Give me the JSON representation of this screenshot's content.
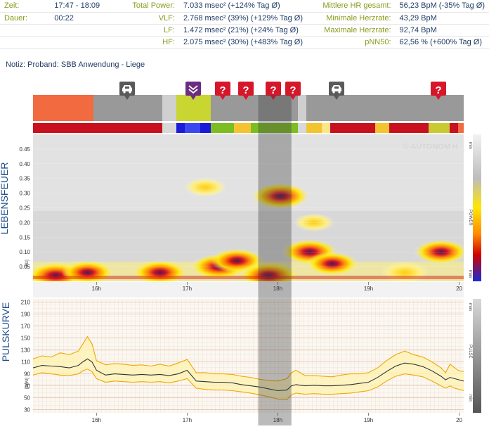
{
  "summary": {
    "zeit": {
      "label": "Zeit:",
      "value": "17:47 - 18:09"
    },
    "dauer": {
      "label": "Dauer:",
      "value": "00:22"
    },
    "total_power": {
      "label": "Total Power:",
      "value": "7.033 msec² (+124% Tag Ø)"
    },
    "vlf": {
      "label": "VLF:",
      "value": "2.768 msec² (39%) (+129% Tag Ø)"
    },
    "lf": {
      "label": "LF:",
      "value": "1.472 msec² (21%) (+24% Tag Ø)"
    },
    "hf": {
      "label": "HF:",
      "value": "2.075 msec² (30%) (+483% Tag Ø)"
    },
    "mhr": {
      "label": "Mittlere HR gesamt:",
      "value": "56,23 BpM (-35% Tag Ø)"
    },
    "minhr": {
      "label": "Minimale Herzrate:",
      "value": "43,29 BpM"
    },
    "maxhr": {
      "label": "Maximale Herzrate:",
      "value": "92,74 BpM"
    },
    "pnn50": {
      "label": "pNN50:",
      "value": "62,56 % (+600% Tag Ø)"
    }
  },
  "note": "Notiz: Proband: SBB Anwendung - Liege",
  "colors": {
    "activity_orange": "#f26a40",
    "activity_gray": "#999999",
    "activity_yellowgreen": "#c9d531",
    "selection": "rgba(60,60,60,0.35)",
    "event_red": "#d6172a",
    "event_purple": "#6b2c82",
    "event_car": "#5a5a5a",
    "pulse_line": "#333333",
    "band_line": "#f0a800",
    "band_fill": "#fff3b0"
  },
  "timeline": {
    "hour_labels": [
      "16h",
      "17h",
      "18h",
      "19h",
      "20"
    ],
    "events": [
      {
        "type": "car",
        "icon": "car-icon"
      },
      {
        "type": "purple",
        "icon": "chevron-down-icon"
      },
      {
        "type": "question",
        "icon": "question-icon",
        "label": "?"
      },
      {
        "type": "question",
        "icon": "question-icon",
        "label": "?"
      },
      {
        "type": "question",
        "icon": "question-icon",
        "label": "?"
      },
      {
        "type": "question",
        "icon": "question-icon",
        "label": "?"
      },
      {
        "type": "car",
        "icon": "car-icon"
      },
      {
        "type": "question",
        "icon": "question-icon",
        "label": "?"
      }
    ]
  },
  "spectrogram": {
    "title": "LEBENSFEUER",
    "unit": "[Hz]",
    "watermark": "© AUTONOM H",
    "legend_label": "POWER",
    "legend_min": "min",
    "legend_max": "max"
  },
  "pulse": {
    "title": "PULSKURVE",
    "unit": "[BpM]",
    "legend_label": "PULSE",
    "legend_min": "min",
    "legend_max": "max"
  },
  "chart_data": [
    {
      "type": "heatmap",
      "title": "LEBENSFEUER",
      "ylabel": "[Hz]",
      "ylim": [
        0,
        0.5
      ],
      "y_ticks": [
        "0.05",
        "0.10",
        "0.15",
        "0.20",
        "0.25",
        "0.30",
        "0.35",
        "0.40",
        "0.45"
      ],
      "x_ticks": [
        "16h",
        "17h",
        "18h",
        "19h",
        "20"
      ],
      "xlim_hours": [
        15.3,
        20.05
      ],
      "selected_range": [
        "17:47",
        "18:09"
      ],
      "legend": {
        "label": "POWER",
        "min": "min",
        "max": "max"
      },
      "hotspots": [
        {
          "t": 15.55,
          "f": 0.02,
          "power": 0.95
        },
        {
          "t": 15.9,
          "f": 0.03,
          "power": 0.8
        },
        {
          "t": 16.7,
          "f": 0.03,
          "power": 0.85
        },
        {
          "t": 17.35,
          "f": 0.05,
          "power": 0.9
        },
        {
          "t": 17.55,
          "f": 0.07,
          "power": 0.85
        },
        {
          "t": 17.9,
          "f": 0.02,
          "power": 0.98
        },
        {
          "t": 18.03,
          "f": 0.29,
          "power": 0.95
        },
        {
          "t": 18.35,
          "f": 0.1,
          "power": 0.9
        },
        {
          "t": 18.6,
          "f": 0.06,
          "power": 0.8
        },
        {
          "t": 19.4,
          "f": 0.03,
          "power": 0.7
        },
        {
          "t": 19.8,
          "f": 0.1,
          "power": 0.85
        },
        {
          "t": 17.2,
          "f": 0.32,
          "power": 0.55
        },
        {
          "t": 18.4,
          "f": 0.2,
          "power": 0.5
        }
      ]
    },
    {
      "type": "line",
      "title": "PULSKURVE",
      "ylabel": "[BpM]",
      "ylim": [
        25,
        215
      ],
      "y_ticks": [
        "30",
        "50",
        "70",
        "90",
        "110",
        "130",
        "150",
        "170",
        "190",
        "210"
      ],
      "x_ticks": [
        "16h",
        "17h",
        "18h",
        "19h",
        "20"
      ],
      "xlim_hours": [
        15.3,
        20.05
      ],
      "selected_range": [
        "17:47",
        "18:09"
      ],
      "legend": {
        "label": "PULSE",
        "min": "min",
        "max": "max"
      },
      "x": [
        15.3,
        15.4,
        15.5,
        15.6,
        15.7,
        15.8,
        15.85,
        15.9,
        15.95,
        16.0,
        16.1,
        16.2,
        16.3,
        16.4,
        16.5,
        16.6,
        16.7,
        16.8,
        16.9,
        17.0,
        17.1,
        17.2,
        17.3,
        17.4,
        17.5,
        17.6,
        17.7,
        17.8,
        17.9,
        18.0,
        18.1,
        18.15,
        18.2,
        18.3,
        18.4,
        18.5,
        18.6,
        18.7,
        18.8,
        18.9,
        19.0,
        19.1,
        19.2,
        19.3,
        19.4,
        19.5,
        19.6,
        19.7,
        19.8,
        19.85,
        19.9,
        19.95,
        20.0,
        20.05
      ],
      "series": [
        {
          "name": "max",
          "values": [
            115,
            120,
            118,
            125,
            122,
            128,
            140,
            152,
            140,
            112,
            105,
            107,
            106,
            104,
            105,
            103,
            106,
            103,
            108,
            114,
            92,
            92,
            90,
            90,
            89,
            86,
            84,
            81,
            79,
            78,
            82,
            92,
            96,
            87,
            87,
            86,
            85,
            88,
            90,
            90,
            92,
            100,
            112,
            122,
            128,
            122,
            118,
            110,
            100,
            92,
            106,
            100,
            95,
            94
          ]
        },
        {
          "values": [
            100,
            104,
            103,
            102,
            100,
            104,
            110,
            115,
            110,
            96,
            88,
            90,
            89,
            88,
            89,
            88,
            89,
            87,
            90,
            96,
            78,
            77,
            76,
            76,
            75,
            72,
            70,
            68,
            65,
            62,
            63,
            70,
            72,
            70,
            71,
            70,
            70,
            71,
            72,
            74,
            76,
            84,
            94,
            103,
            108,
            106,
            102,
            95,
            86,
            80,
            84,
            82,
            80,
            78
          ]
        },
        {
          "name": "min",
          "values": [
            88,
            92,
            90,
            88,
            87,
            90,
            95,
            98,
            94,
            82,
            76,
            78,
            77,
            76,
            77,
            76,
            77,
            75,
            78,
            82,
            66,
            64,
            63,
            63,
            62,
            60,
            58,
            55,
            52,
            48,
            47,
            55,
            58,
            56,
            57,
            56,
            56,
            57,
            58,
            60,
            62,
            68,
            78,
            86,
            90,
            88,
            85,
            78,
            70,
            66,
            70,
            66,
            64,
            62
          ]
        }
      ]
    }
  ]
}
